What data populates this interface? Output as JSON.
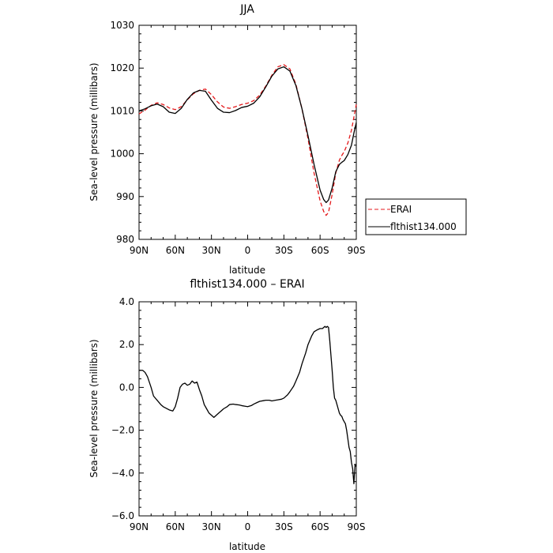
{
  "chart_data": [
    {
      "type": "line",
      "title": "JJA",
      "xlabel": "latitude",
      "ylabel": "Sea-level pressure (millibars)",
      "xlim": [
        90,
        -90
      ],
      "ylim": [
        980,
        1030
      ],
      "xticks": [
        {
          "value": 90,
          "label": "90N"
        },
        {
          "value": 60,
          "label": "60N"
        },
        {
          "value": 30,
          "label": "30N"
        },
        {
          "value": 0,
          "label": "0"
        },
        {
          "value": -30,
          "label": "30S"
        },
        {
          "value": -60,
          "label": "60S"
        },
        {
          "value": -90,
          "label": "90S"
        }
      ],
      "yticks": [
        {
          "value": 980,
          "label": "980"
        },
        {
          "value": 990,
          "label": "990"
        },
        {
          "value": 1000,
          "label": "1000"
        },
        {
          "value": 1010,
          "label": "1010"
        },
        {
          "value": 1020,
          "label": "1020"
        },
        {
          "value": 1030,
          "label": "1030"
        }
      ],
      "legend_position": "outside-right",
      "series": [
        {
          "name": "ERAI",
          "color": "#e41a1c",
          "dash": "dashed",
          "x": [
            90,
            85,
            80,
            75,
            70,
            65,
            60,
            55,
            50,
            45,
            40,
            35,
            30,
            25,
            20,
            15,
            10,
            5,
            0,
            -5,
            -10,
            -15,
            -20,
            -25,
            -30,
            -35,
            -40,
            -45,
            -50,
            -55,
            -60,
            -63,
            -65,
            -67,
            -70,
            -73,
            -76,
            -78,
            -80,
            -83,
            -86,
            -88,
            -90
          ],
          "y": [
            1009.3,
            1010.2,
            1011.3,
            1011.9,
            1011.5,
            1010.7,
            1010.3,
            1011.0,
            1012.6,
            1014.0,
            1014.8,
            1015.1,
            1013.8,
            1012.1,
            1010.9,
            1010.6,
            1011.0,
            1011.5,
            1011.8,
            1012.4,
            1013.7,
            1015.8,
            1018.3,
            1020.3,
            1020.8,
            1019.8,
            1016.2,
            1010.5,
            1003.5,
            995.5,
            989.0,
            986.5,
            985.6,
            986.3,
            990.5,
            995.5,
            998.5,
            999.6,
            1000.5,
            1002.5,
            1005.5,
            1008.5,
            1011.5
          ]
        },
        {
          "name": "flthist134.000",
          "color": "#000000",
          "dash": "solid",
          "x": [
            90,
            85,
            80,
            75,
            70,
            65,
            60,
            55,
            50,
            45,
            40,
            35,
            30,
            25,
            20,
            15,
            10,
            5,
            0,
            -5,
            -10,
            -15,
            -20,
            -25,
            -30,
            -35,
            -40,
            -45,
            -50,
            -55,
            -60,
            -63,
            -65,
            -67,
            -70,
            -73,
            -76,
            -78,
            -80,
            -83,
            -86,
            -88,
            -90
          ],
          "y": [
            1010.0,
            1010.5,
            1011.2,
            1011.6,
            1011.0,
            1009.7,
            1009.4,
            1010.6,
            1012.7,
            1014.2,
            1014.8,
            1014.6,
            1012.5,
            1010.6,
            1009.7,
            1009.6,
            1010.1,
            1010.8,
            1011.1,
            1011.8,
            1013.3,
            1015.6,
            1018.1,
            1019.8,
            1020.3,
            1019.3,
            1015.9,
            1010.5,
            1004.2,
            997.5,
            991.5,
            989.3,
            988.6,
            989.2,
            992.0,
            995.8,
            997.5,
            998.0,
            998.4,
            999.8,
            1002.0,
            1004.8,
            1007.3
          ]
        }
      ]
    },
    {
      "type": "line",
      "title": "flthist134.000 – ERAI",
      "xlabel": "latitude",
      "ylabel": "Sea-level pressure (millibars)",
      "xlim": [
        90,
        -90
      ],
      "ylim": [
        -6,
        4
      ],
      "xticks": [
        {
          "value": 90,
          "label": "90N"
        },
        {
          "value": 60,
          "label": "60N"
        },
        {
          "value": 30,
          "label": "30N"
        },
        {
          "value": 0,
          "label": "0"
        },
        {
          "value": -30,
          "label": "30S"
        },
        {
          "value": -60,
          "label": "60S"
        },
        {
          "value": -90,
          "label": "90S"
        }
      ],
      "yticks": [
        {
          "value": -6,
          "label": "−6.0"
        },
        {
          "value": -4,
          "label": "−4.0"
        },
        {
          "value": -2,
          "label": "−2.0"
        },
        {
          "value": 0,
          "label": "0.0"
        },
        {
          "value": 2,
          "label": "2.0"
        },
        {
          "value": 4,
          "label": "4.0"
        }
      ],
      "series": [
        {
          "color": "#000000",
          "dash": "solid",
          "x": [
            90,
            87,
            85,
            83,
            80,
            78,
            75,
            72,
            70,
            65,
            62,
            60,
            58,
            56,
            54,
            52,
            50,
            48,
            46,
            44,
            42,
            40,
            38,
            36,
            34,
            32,
            30,
            28,
            26,
            24,
            22,
            20,
            17,
            15,
            12,
            10,
            7,
            5,
            2,
            0,
            -3,
            -5,
            -8,
            -10,
            -13,
            -15,
            -18,
            -20,
            -23,
            -25,
            -28,
            -30,
            -33,
            -35,
            -38,
            -40,
            -43,
            -45,
            -48,
            -50,
            -53,
            -55,
            -58,
            -60,
            -62,
            -63,
            -64,
            -65,
            -66,
            -67,
            -68,
            -69,
            -70,
            -71,
            -72,
            -73,
            -74,
            -75,
            -76,
            -77,
            -78,
            -79,
            -80,
            -81,
            -82,
            -83,
            -84,
            -85,
            -86,
            -87,
            -88,
            -89,
            -90
          ],
          "y": [
            0.8,
            0.8,
            0.7,
            0.5,
            0.0,
            -0.4,
            -0.6,
            -0.8,
            -0.9,
            -1.05,
            -1.1,
            -0.9,
            -0.5,
            0.0,
            0.15,
            0.2,
            0.1,
            0.15,
            0.3,
            0.2,
            0.25,
            -0.1,
            -0.4,
            -0.8,
            -1.0,
            -1.2,
            -1.3,
            -1.4,
            -1.3,
            -1.2,
            -1.1,
            -1.0,
            -0.9,
            -0.8,
            -0.78,
            -0.8,
            -0.82,
            -0.85,
            -0.88,
            -0.9,
            -0.85,
            -0.78,
            -0.7,
            -0.65,
            -0.62,
            -0.6,
            -0.6,
            -0.63,
            -0.6,
            -0.58,
            -0.55,
            -0.5,
            -0.35,
            -0.2,
            0.05,
            0.3,
            0.7,
            1.1,
            1.6,
            2.0,
            2.4,
            2.6,
            2.7,
            2.75,
            2.75,
            2.8,
            2.85,
            2.8,
            2.85,
            2.8,
            2.2,
            1.5,
            0.8,
            0.0,
            -0.5,
            -0.6,
            -0.8,
            -1.0,
            -1.2,
            -1.3,
            -1.35,
            -1.5,
            -1.6,
            -1.7,
            -2.0,
            -2.4,
            -2.8,
            -3.0,
            -3.5,
            -3.8,
            -4.5,
            -3.6,
            -3.7
          ]
        }
      ]
    }
  ]
}
